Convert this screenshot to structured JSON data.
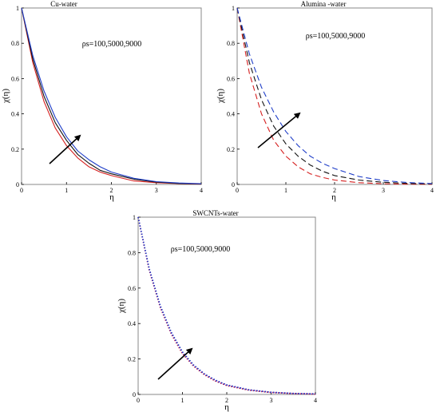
{
  "chart_data": [
    {
      "type": "line",
      "title": "Cu-water",
      "annotation": "ρs=100,5000,9000",
      "xlabel": "η",
      "ylabel": "χ(η)",
      "xlim": [
        0,
        4
      ],
      "ylim": [
        0,
        1
      ],
      "xticks": [
        "0",
        "1",
        "2",
        "3",
        "4"
      ],
      "yticks": [
        "0",
        "0.2",
        "0.4",
        "0.6",
        "0.8",
        "1"
      ],
      "line_style": "solid",
      "arrow": "increasing ρs",
      "x": [
        0,
        0.25,
        0.5,
        0.75,
        1.0,
        1.25,
        1.5,
        1.75,
        2.0,
        2.5,
        3.0,
        3.5,
        4.0
      ],
      "series": [
        {
          "color": "#d62020",
          "values": [
            1.0,
            0.69,
            0.47,
            0.32,
            0.22,
            0.15,
            0.1,
            0.07,
            0.05,
            0.02,
            0.01,
            0.005,
            0.002
          ]
        },
        {
          "color": "#111111",
          "values": [
            1.0,
            0.71,
            0.5,
            0.35,
            0.25,
            0.17,
            0.12,
            0.08,
            0.06,
            0.03,
            0.013,
            0.006,
            0.003
          ]
        },
        {
          "color": "#1f3ec8",
          "values": [
            1.0,
            0.73,
            0.53,
            0.38,
            0.27,
            0.19,
            0.14,
            0.1,
            0.07,
            0.035,
            0.016,
            0.008,
            0.004
          ]
        }
      ]
    },
    {
      "type": "line",
      "title": "Alumina -water",
      "annotation": "ρs=100,5000,9000",
      "xlabel": "η",
      "ylabel": "χ(η)",
      "xlim": [
        0,
        4
      ],
      "ylim": [
        0,
        1
      ],
      "xticks": [
        "0",
        "1",
        "2",
        "3",
        "4"
      ],
      "yticks": [
        "0",
        "0.2",
        "0.4",
        "0.6",
        "0.8",
        "1"
      ],
      "line_style": "dashed",
      "arrow": "increasing ρs",
      "x": [
        0,
        0.25,
        0.5,
        0.75,
        1.0,
        1.25,
        1.5,
        1.75,
        2.0,
        2.5,
        3.0,
        3.5,
        4.0
      ],
      "series": [
        {
          "color": "#d62020",
          "values": [
            1.0,
            0.63,
            0.4,
            0.25,
            0.16,
            0.1,
            0.06,
            0.04,
            0.025,
            0.01,
            0.004,
            0.002,
            0.001
          ]
        },
        {
          "color": "#111111",
          "values": [
            1.0,
            0.69,
            0.48,
            0.33,
            0.23,
            0.16,
            0.11,
            0.075,
            0.05,
            0.025,
            0.012,
            0.006,
            0.003
          ]
        },
        {
          "color": "#1f3ec8",
          "values": [
            1.0,
            0.74,
            0.55,
            0.41,
            0.3,
            0.22,
            0.16,
            0.12,
            0.09,
            0.045,
            0.022,
            0.011,
            0.005
          ]
        }
      ]
    },
    {
      "type": "line",
      "title": "SWCNTs-water",
      "annotation": "ρs=100,5000,9000",
      "xlabel": "η",
      "ylabel": "χ(η)",
      "xlim": [
        0,
        4
      ],
      "ylim": [
        0,
        1
      ],
      "xticks": [
        "0",
        "1",
        "2",
        "3",
        "4"
      ],
      "yticks": [
        "0",
        "0.2",
        "0.4",
        "0.6",
        "0.8",
        "1"
      ],
      "line_style": "dotted",
      "arrow": "increasing ρs",
      "x": [
        0,
        0.25,
        0.5,
        0.75,
        1.0,
        1.25,
        1.5,
        1.75,
        2.0,
        2.5,
        3.0,
        3.5,
        4.0
      ],
      "series": [
        {
          "color": "#d62020",
          "values": [
            1.0,
            0.7,
            0.49,
            0.34,
            0.23,
            0.16,
            0.11,
            0.075,
            0.05,
            0.024,
            0.011,
            0.005,
            0.002
          ]
        },
        {
          "color": "#7a1fa8",
          "values": [
            1.0,
            0.705,
            0.495,
            0.345,
            0.235,
            0.163,
            0.113,
            0.077,
            0.052,
            0.025,
            0.012,
            0.0055,
            0.0025
          ]
        },
        {
          "color": "#1f3ec8",
          "values": [
            1.0,
            0.71,
            0.5,
            0.35,
            0.24,
            0.166,
            0.115,
            0.08,
            0.054,
            0.026,
            0.012,
            0.006,
            0.003
          ]
        }
      ]
    }
  ]
}
